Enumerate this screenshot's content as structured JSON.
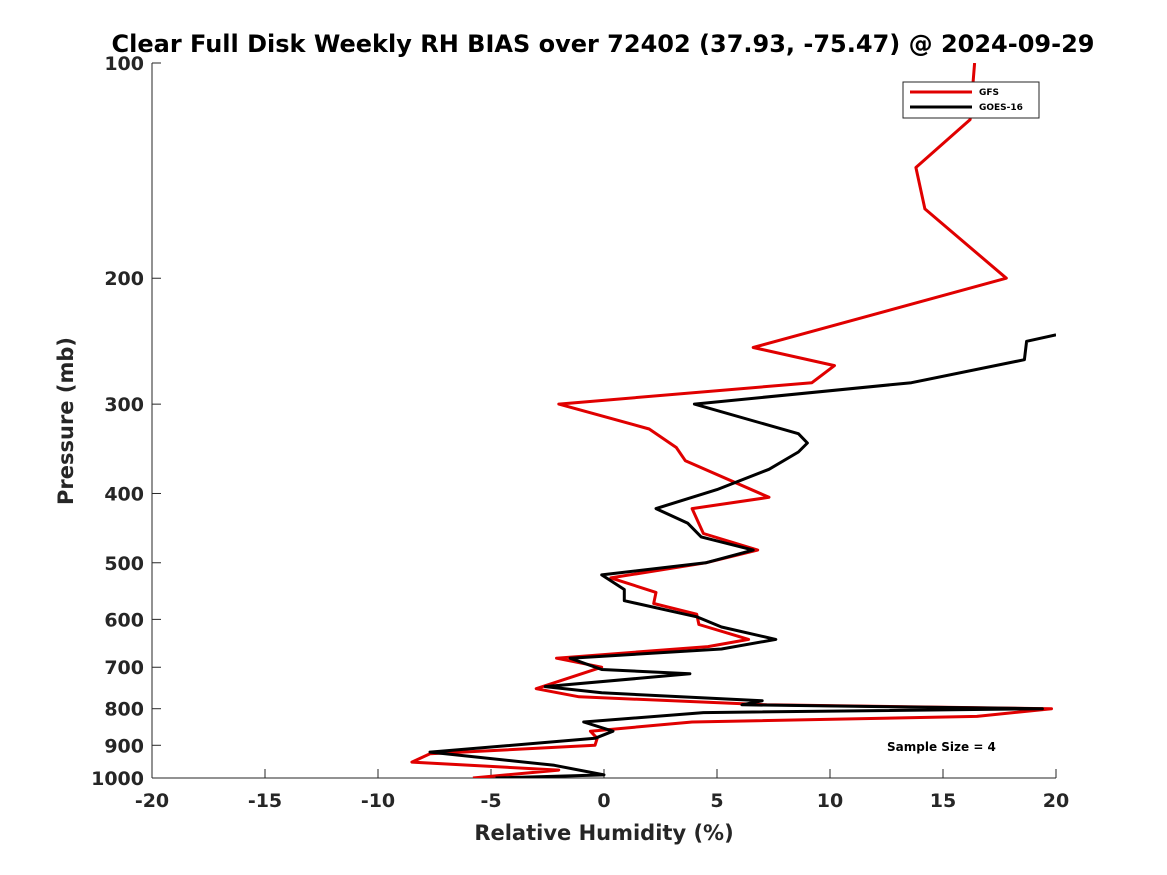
{
  "chart_data": {
    "type": "line",
    "title": "Clear Full Disk Weekly RH BIAS over 72402 (37.93, -75.47) @ 2024-09-29",
    "xlabel": "Relative Humidity (%)",
    "ylabel": "Pressure (mb)",
    "xlim": [
      -20,
      20
    ],
    "ylim": [
      1000,
      100
    ],
    "yscale": "log",
    "y_reversed": true,
    "grid": false,
    "legend_position": "top-right",
    "x_ticks": [
      -20,
      -15,
      -10,
      -5,
      0,
      5,
      10,
      15,
      20
    ],
    "x_tick_labels": [
      "-20",
      "-15",
      "-10",
      "-5",
      "0",
      "5",
      "10",
      "15",
      "20"
    ],
    "y_ticks": [
      100,
      200,
      300,
      400,
      500,
      600,
      700,
      800,
      900,
      1000
    ],
    "y_tick_labels": [
      "100",
      "200",
      "300",
      "400",
      "500",
      "600",
      "700",
      "800",
      "900",
      "1000"
    ],
    "annotation": "Sample Size = 4",
    "series": [
      {
        "name": "GFS",
        "color": "#e00000",
        "points": [
          [
            16.4,
            100
          ],
          [
            16.2,
            120
          ],
          [
            13.8,
            140
          ],
          [
            14.2,
            160
          ],
          [
            17.8,
            200
          ],
          [
            6.6,
            250
          ],
          [
            10.2,
            265
          ],
          [
            9.2,
            280
          ],
          [
            -2.0,
            300
          ],
          [
            2.0,
            325
          ],
          [
            3.2,
            345
          ],
          [
            3.6,
            360
          ],
          [
            7.3,
            405
          ],
          [
            3.9,
            420
          ],
          [
            4.4,
            455
          ],
          [
            6.8,
            480
          ],
          [
            4.5,
            500
          ],
          [
            0.3,
            525
          ],
          [
            2.3,
            550
          ],
          [
            2.2,
            570
          ],
          [
            4.1,
            590
          ],
          [
            4.2,
            610
          ],
          [
            6.4,
            640
          ],
          [
            4.6,
            655
          ],
          [
            -2.1,
            680
          ],
          [
            -0.1,
            700
          ],
          [
            -3.0,
            750
          ],
          [
            -1.1,
            770
          ],
          [
            7.2,
            790
          ],
          [
            19.8,
            800
          ],
          [
            16.5,
            820
          ],
          [
            3.9,
            835
          ],
          [
            -0.6,
            860
          ],
          [
            -0.3,
            880
          ],
          [
            -0.4,
            900
          ],
          [
            -7.7,
            925
          ],
          [
            -8.5,
            950
          ],
          [
            -2.0,
            975
          ],
          [
            -5.8,
            1000
          ]
        ]
      },
      {
        "name": "GOES-16",
        "color": "#000000",
        "points": [
          [
            20.0,
            240
          ],
          [
            18.7,
            245
          ],
          [
            18.6,
            260
          ],
          [
            13.6,
            280
          ],
          [
            4.0,
            300
          ],
          [
            8.6,
            330
          ],
          [
            9.0,
            340
          ],
          [
            8.6,
            350
          ],
          [
            7.3,
            370
          ],
          [
            5.0,
            395
          ],
          [
            2.3,
            420
          ],
          [
            3.7,
            440
          ],
          [
            4.3,
            460
          ],
          [
            6.6,
            480
          ],
          [
            4.5,
            500
          ],
          [
            -0.1,
            520
          ],
          [
            0.9,
            545
          ],
          [
            0.9,
            565
          ],
          [
            4.1,
            595
          ],
          [
            5.2,
            615
          ],
          [
            7.6,
            640
          ],
          [
            5.2,
            660
          ],
          [
            -1.5,
            680
          ],
          [
            -0.1,
            705
          ],
          [
            3.8,
            715
          ],
          [
            -2.6,
            745
          ],
          [
            -0.1,
            760
          ],
          [
            7.0,
            780
          ],
          [
            6.1,
            790
          ],
          [
            19.4,
            800
          ],
          [
            4.4,
            810
          ],
          [
            -0.9,
            835
          ],
          [
            0.4,
            860
          ],
          [
            -0.4,
            880
          ],
          [
            -7.7,
            920
          ],
          [
            -2.2,
            960
          ],
          [
            0.0,
            990
          ],
          [
            -4.8,
            1000
          ]
        ]
      }
    ]
  }
}
